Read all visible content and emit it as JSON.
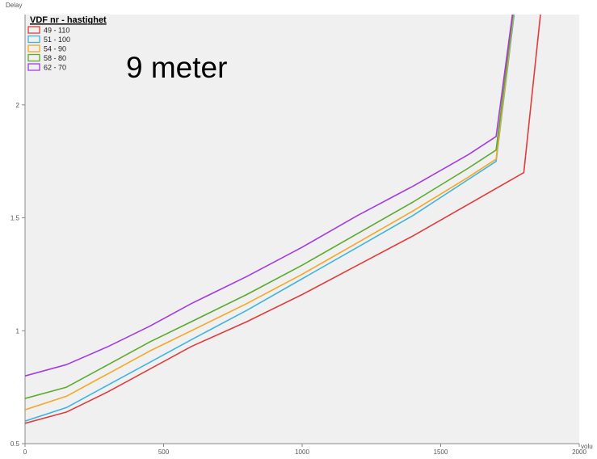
{
  "chart_data": {
    "type": "line",
    "title": "",
    "annotation": "9 meter",
    "xlabel": "volu",
    "ylabel": "Delay",
    "xlim": [
      0,
      2000
    ],
    "ylim": [
      0.5,
      2.4
    ],
    "x_ticks": [
      0,
      500,
      1000,
      1500,
      2000
    ],
    "y_ticks": [
      0.5,
      1,
      1.5,
      2
    ],
    "x_tick_labels": [
      "0",
      "500",
      "1000",
      "1500",
      "2000"
    ],
    "y_tick_labels": [
      "0.5",
      "1",
      "1.5",
      "2"
    ],
    "grid": false,
    "legend_title": "VDF nr - hastighet",
    "legend_position": "top-left",
    "plot_background": "#f0f0f0",
    "series": [
      {
        "name": "49 - 110",
        "color": "#e03c3c",
        "x": [
          0,
          150,
          300,
          450,
          600,
          800,
          1000,
          1200,
          1400,
          1600,
          1800,
          1860
        ],
        "y": [
          0.59,
          0.64,
          0.73,
          0.83,
          0.93,
          1.04,
          1.16,
          1.29,
          1.42,
          1.56,
          1.7,
          2.4
        ]
      },
      {
        "name": "51 - 100",
        "color": "#3db4e0",
        "x": [
          0,
          150,
          300,
          450,
          600,
          800,
          1000,
          1200,
          1400,
          1600,
          1700,
          1765
        ],
        "y": [
          0.6,
          0.66,
          0.76,
          0.86,
          0.96,
          1.09,
          1.23,
          1.37,
          1.51,
          1.67,
          1.75,
          2.4
        ]
      },
      {
        "name": "54 - 90",
        "color": "#f5a623",
        "x": [
          0,
          150,
          300,
          450,
          600,
          800,
          1000,
          1200,
          1400,
          1600,
          1700,
          1763
        ],
        "y": [
          0.65,
          0.71,
          0.81,
          0.91,
          1.0,
          1.12,
          1.25,
          1.39,
          1.53,
          1.68,
          1.76,
          2.4
        ]
      },
      {
        "name": "58 - 80",
        "color": "#5aaa2c",
        "x": [
          0,
          150,
          300,
          450,
          600,
          800,
          1000,
          1200,
          1400,
          1600,
          1700,
          1761
        ],
        "y": [
          0.7,
          0.75,
          0.85,
          0.95,
          1.04,
          1.16,
          1.29,
          1.43,
          1.57,
          1.72,
          1.8,
          2.4
        ]
      },
      {
        "name": "62 - 70",
        "color": "#a33be0",
        "x": [
          0,
          150,
          300,
          450,
          600,
          800,
          1000,
          1200,
          1400,
          1600,
          1700,
          1759
        ],
        "y": [
          0.8,
          0.85,
          0.93,
          1.02,
          1.12,
          1.24,
          1.37,
          1.51,
          1.64,
          1.78,
          1.86,
          2.4
        ]
      }
    ]
  }
}
